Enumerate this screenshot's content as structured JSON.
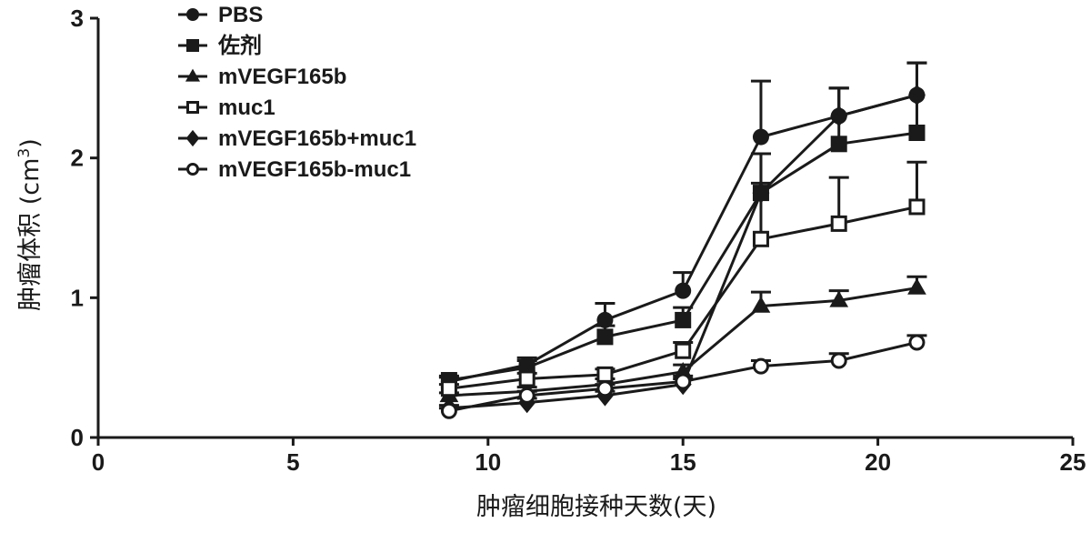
{
  "chart_data": {
    "type": "line",
    "xlabel": "肿瘤细胞接种天数(天)",
    "ylabel_main": "肿瘤体积 (cm",
    "ylabel_sup": "3",
    "ylabel_end": ")",
    "xlim": [
      0,
      25
    ],
    "ylim": [
      0,
      3
    ],
    "xticks": [
      0,
      5,
      10,
      15,
      20,
      25
    ],
    "yticks": [
      0,
      1,
      2,
      3
    ],
    "grid": false,
    "legend_position": "top-left",
    "series": [
      {
        "name": "PBS",
        "marker": "circle",
        "x": [
          9,
          11,
          13,
          15,
          17,
          19,
          21
        ],
        "y": [
          0.4,
          0.52,
          0.84,
          1.05,
          2.15,
          2.3,
          2.45
        ],
        "err": [
          0.03,
          0.05,
          0.12,
          0.13,
          0.4,
          0.2,
          0.23
        ]
      },
      {
        "name": "佐剂",
        "marker": "square",
        "x": [
          9,
          11,
          13,
          15,
          17,
          19,
          21
        ],
        "y": [
          0.41,
          0.5,
          0.72,
          0.84,
          1.75,
          2.1,
          2.18
        ],
        "err": [
          0.03,
          0.05,
          0.08,
          0.09,
          0.28,
          0.4,
          0.5
        ]
      },
      {
        "name": "mVEGF165b",
        "marker": "triangle",
        "x": [
          9,
          11,
          13,
          15,
          17,
          19,
          21
        ],
        "y": [
          0.3,
          0.33,
          0.38,
          0.47,
          0.94,
          0.98,
          1.07
        ],
        "err": [
          0.02,
          0.03,
          0.04,
          0.05,
          0.1,
          0.07,
          0.08
        ]
      },
      {
        "name": "muc1",
        "marker": "square-open",
        "x": [
          9,
          11,
          13,
          15,
          17,
          19,
          21
        ],
        "y": [
          0.35,
          0.42,
          0.45,
          0.62,
          1.42,
          1.53,
          1.65
        ],
        "err": [
          0.03,
          0.04,
          0.04,
          0.06,
          0.4,
          0.33,
          0.32
        ]
      },
      {
        "name": "mVEGF165b+muc1",
        "marker": "diamond",
        "x": [
          9,
          11,
          13,
          15,
          17,
          19,
          21
        ],
        "y": [
          0.21,
          0.25,
          0.3,
          0.38,
          1.75,
          2.3,
          2.45
        ],
        "err": [
          0.02,
          0.03,
          0.03,
          0.04,
          0.28,
          0.2,
          0.23
        ]
      },
      {
        "name": "mVEGF165b-muc1",
        "marker": "circle-open",
        "x": [
          9,
          11,
          13,
          15,
          17,
          19,
          21
        ],
        "y": [
          0.19,
          0.3,
          0.35,
          0.4,
          0.51,
          0.55,
          0.68
        ],
        "err": [
          0.02,
          0.03,
          0.03,
          0.04,
          0.04,
          0.05,
          0.05
        ]
      }
    ]
  }
}
